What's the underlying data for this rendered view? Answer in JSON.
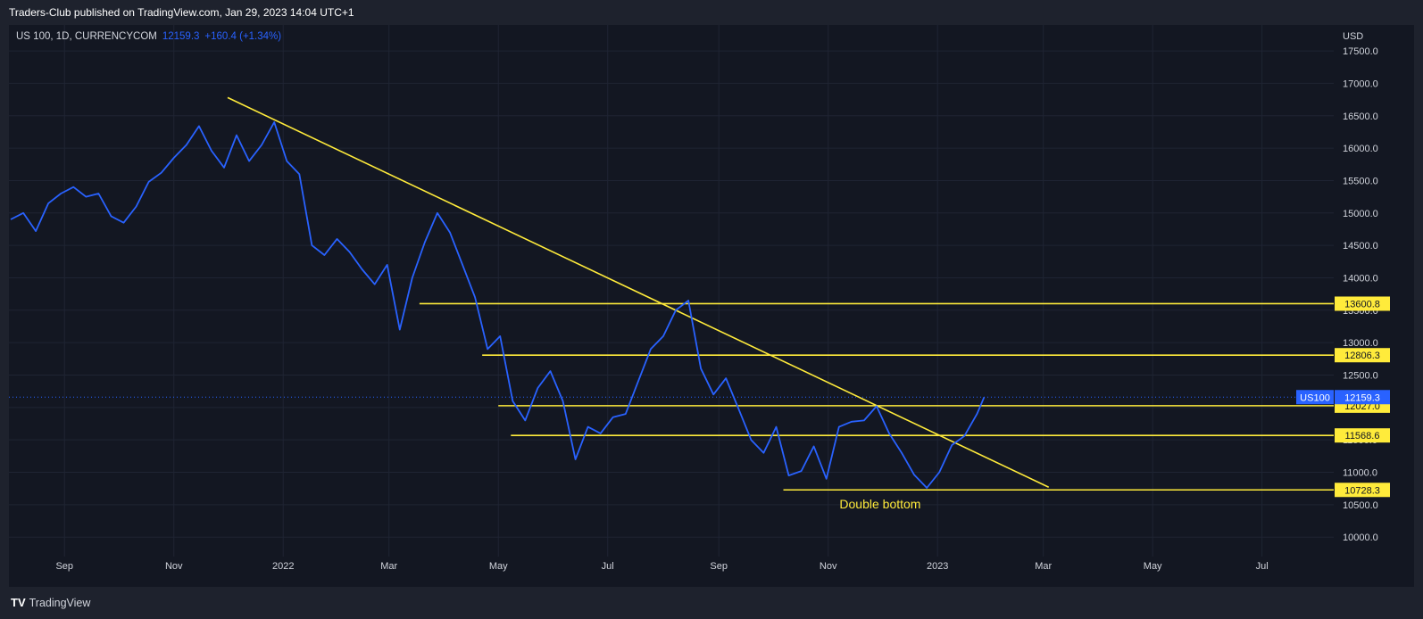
{
  "header": {
    "publisher": "Traders-Club published on TradingView.com, Jan 29, 2023 14:04 UTC+1"
  },
  "legend": {
    "symbol": "US 100, 1D, CURRENCYCOM",
    "price": "12159.3",
    "change": "+160.4 (+1.34%)"
  },
  "footer": {
    "brand": "TradingView",
    "brand_icon": "tradingview-logo-icon"
  },
  "colors": {
    "line": "#2962ff",
    "levels": "#ffeb3b",
    "bg": "#131722"
  },
  "chart_data": {
    "type": "line",
    "currency": "USD",
    "ylim": [
      9700,
      17900
    ],
    "yticks": [
      10000,
      10500,
      11000,
      11500,
      12000,
      12500,
      13000,
      13500,
      14000,
      14500,
      15000,
      15500,
      16000,
      16500,
      17000,
      17500
    ],
    "ytick_labels": [
      "10000.0",
      "10500.0",
      "11000.0",
      "11500.0",
      "12000.0",
      "12500.0",
      "13000.0",
      "13500.0",
      "14000.0",
      "14500.0",
      "15000.0",
      "15500.0",
      "16000.0",
      "16500.0",
      "17000.0",
      "17500.0"
    ],
    "xlim": [
      "2021-08-01",
      "2023-08-10"
    ],
    "xticks": [
      {
        "label": "Sep",
        "date": "2021-09-01"
      },
      {
        "label": "Nov",
        "date": "2021-11-01"
      },
      {
        "label": "2022",
        "date": "2022-01-01"
      },
      {
        "label": "Mar",
        "date": "2022-03-01"
      },
      {
        "label": "May",
        "date": "2022-05-01"
      },
      {
        "label": "Jul",
        "date": "2022-07-01"
      },
      {
        "label": "Sep",
        "date": "2022-09-01"
      },
      {
        "label": "Nov",
        "date": "2022-11-01"
      },
      {
        "label": "2023",
        "date": "2023-01-01"
      },
      {
        "label": "Mar",
        "date": "2023-03-01"
      },
      {
        "label": "May",
        "date": "2023-05-01"
      },
      {
        "label": "Jul",
        "date": "2023-07-01"
      }
    ],
    "series": [
      {
        "values": [
          [
            "2021-08-02",
            14900
          ],
          [
            "2021-08-09",
            15000
          ],
          [
            "2021-08-16",
            14720
          ],
          [
            "2021-08-23",
            15150
          ],
          [
            "2021-08-30",
            15300
          ],
          [
            "2021-09-06",
            15400
          ],
          [
            "2021-09-13",
            15250
          ],
          [
            "2021-09-20",
            15300
          ],
          [
            "2021-09-27",
            14950
          ],
          [
            "2021-10-04",
            14850
          ],
          [
            "2021-10-11",
            15100
          ],
          [
            "2021-10-18",
            15480
          ],
          [
            "2021-10-25",
            15620
          ],
          [
            "2021-11-01",
            15850
          ],
          [
            "2021-11-08",
            16050
          ],
          [
            "2021-11-15",
            16340
          ],
          [
            "2021-11-22",
            15960
          ],
          [
            "2021-11-29",
            15700
          ],
          [
            "2021-12-06",
            16200
          ],
          [
            "2021-12-13",
            15800
          ],
          [
            "2021-12-20",
            16050
          ],
          [
            "2021-12-27",
            16400
          ],
          [
            "2022-01-03",
            15800
          ],
          [
            "2022-01-10",
            15600
          ],
          [
            "2022-01-17",
            14500
          ],
          [
            "2022-01-24",
            14350
          ],
          [
            "2022-01-31",
            14600
          ],
          [
            "2022-02-07",
            14400
          ],
          [
            "2022-02-14",
            14130
          ],
          [
            "2022-02-21",
            13900
          ],
          [
            "2022-02-28",
            14200
          ],
          [
            "2022-03-07",
            13200
          ],
          [
            "2022-03-14",
            14000
          ],
          [
            "2022-03-21",
            14550
          ],
          [
            "2022-03-28",
            15000
          ],
          [
            "2022-04-04",
            14700
          ],
          [
            "2022-04-11",
            14200
          ],
          [
            "2022-04-18",
            13700
          ],
          [
            "2022-04-25",
            12900
          ],
          [
            "2022-05-02",
            13100
          ],
          [
            "2022-05-09",
            12100
          ],
          [
            "2022-05-16",
            11800
          ],
          [
            "2022-05-23",
            12300
          ],
          [
            "2022-05-30",
            12560
          ],
          [
            "2022-06-06",
            12100
          ],
          [
            "2022-06-13",
            11200
          ],
          [
            "2022-06-20",
            11700
          ],
          [
            "2022-06-27",
            11600
          ],
          [
            "2022-07-04",
            11850
          ],
          [
            "2022-07-11",
            11900
          ],
          [
            "2022-07-18",
            12400
          ],
          [
            "2022-07-25",
            12900
          ],
          [
            "2022-08-01",
            13100
          ],
          [
            "2022-08-08",
            13500
          ],
          [
            "2022-08-15",
            13650
          ],
          [
            "2022-08-22",
            12600
          ],
          [
            "2022-08-29",
            12200
          ],
          [
            "2022-09-05",
            12450
          ],
          [
            "2022-09-12",
            11980
          ],
          [
            "2022-09-19",
            11500
          ],
          [
            "2022-09-26",
            11300
          ],
          [
            "2022-10-03",
            11700
          ],
          [
            "2022-10-10",
            10950
          ],
          [
            "2022-10-17",
            11020
          ],
          [
            "2022-10-24",
            11400
          ],
          [
            "2022-10-31",
            10900
          ],
          [
            "2022-11-07",
            11700
          ],
          [
            "2022-11-14",
            11780
          ],
          [
            "2022-11-21",
            11800
          ],
          [
            "2022-11-28",
            12020
          ],
          [
            "2022-12-05",
            11600
          ],
          [
            "2022-12-12",
            11300
          ],
          [
            "2022-12-19",
            10960
          ],
          [
            "2022-12-26",
            10760
          ],
          [
            "2023-01-02",
            11000
          ],
          [
            "2023-01-09",
            11420
          ],
          [
            "2023-01-16",
            11560
          ],
          [
            "2023-01-23",
            11900
          ],
          [
            "2023-01-27",
            12159.3
          ]
        ]
      }
    ],
    "levels": [
      {
        "value": 13600.8,
        "label": "13600.8",
        "from": "2022-03-18"
      },
      {
        "value": 12806.3,
        "label": "12806.3",
        "from": "2022-04-22"
      },
      {
        "value": 12027.0,
        "label": "12027.0",
        "from": "2022-05-01"
      },
      {
        "value": 11568.6,
        "label": "11568.6",
        "from": "2022-05-08"
      },
      {
        "value": 10728.3,
        "label": "10728.3",
        "from": "2022-10-07"
      }
    ],
    "trendline": {
      "from": [
        "2021-12-01",
        16780
      ],
      "to": [
        "2023-03-04",
        10770
      ]
    },
    "current": {
      "symbol": "US100",
      "value": 12159.3,
      "label": "12159.3"
    },
    "annotation": {
      "text": "Double bottom",
      "date": "2022-11-30",
      "value": 10440
    }
  }
}
